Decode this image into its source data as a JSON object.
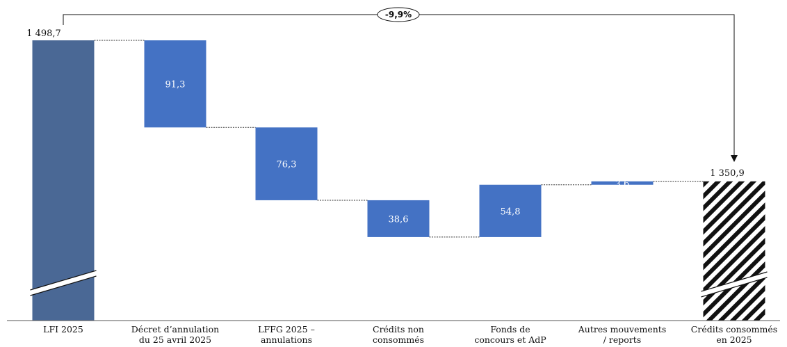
{
  "chart_data": {
    "type": "bar",
    "subtype": "waterfall",
    "categories": [
      [
        "LFI 2025"
      ],
      [
        "Décret d’annulation",
        "du 25 avril 2025"
      ],
      [
        "LFFG 2025 –",
        "annulations"
      ],
      [
        "Crédits non",
        "consommés"
      ],
      [
        "Fonds de",
        "concours et AdP"
      ],
      [
        "Autres mouvements",
        "/ reports"
      ],
      [
        "Crédits consommés",
        "en 2025"
      ]
    ],
    "start_value": 1498.7,
    "start_label": "1 498,7",
    "end_value": 1350.9,
    "end_label": "1 350,9",
    "steps": [
      {
        "value": -91.3,
        "label": "91,3"
      },
      {
        "value": -76.3,
        "label": "76,3"
      },
      {
        "value": -38.6,
        "label": "38,6"
      },
      {
        "value": 54.8,
        "label": "54,8"
      },
      {
        "value": 3.6,
        "label": "3,6"
      }
    ],
    "variation_label": "-9,9%",
    "axis_break": true,
    "colors": {
      "start_bar": "#4a6895",
      "step_bar": "#4472c4",
      "end_bar_hatch": "#111111",
      "connector": "#333333",
      "axis": "#555555"
    }
  }
}
